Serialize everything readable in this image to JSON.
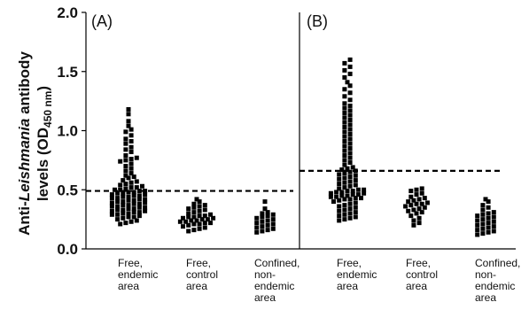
{
  "chart_data": {
    "type": "scatter",
    "ylabel": {
      "line1_prefix": "Anti-",
      "line1_italic": "Leishmania",
      "line1_suffix": " antibody",
      "line2_prefix": "levels (OD",
      "line2_sub": "450 nm",
      "line2_suffix": ")"
    },
    "ylim": [
      0,
      2.0
    ],
    "yticks": [
      "0.0",
      "0.5",
      "1.0",
      "1.5",
      "2.0"
    ],
    "grid": false,
    "panels": [
      {
        "label": "(A)",
        "cutoff": 0.49,
        "groups": [
          {
            "label_lines": [
              "Free,",
              "endemic",
              "area"
            ],
            "values": [
              1.18,
              1.14,
              1.08,
              1.04,
              1.01,
              0.99,
              0.96,
              0.93,
              0.91,
              0.89,
              0.86,
              0.84,
              0.82,
              0.79,
              0.77,
              0.76,
              0.75,
              0.74,
              0.72,
              0.7,
              0.68,
              0.66,
              0.64,
              0.62,
              0.61,
              0.6,
              0.58,
              0.57,
              0.56,
              0.55,
              0.54,
              0.53,
              0.52,
              0.52,
              0.51,
              0.5,
              0.5,
              0.49,
              0.49,
              0.48,
              0.48,
              0.47,
              0.47,
              0.46,
              0.46,
              0.45,
              0.45,
              0.44,
              0.44,
              0.43,
              0.43,
              0.42,
              0.42,
              0.41,
              0.41,
              0.4,
              0.4,
              0.39,
              0.39,
              0.38,
              0.38,
              0.37,
              0.37,
              0.36,
              0.36,
              0.35,
              0.35,
              0.34,
              0.34,
              0.33,
              0.33,
              0.32,
              0.32,
              0.31,
              0.31,
              0.3,
              0.3,
              0.29,
              0.29,
              0.28,
              0.27,
              0.27,
              0.26,
              0.25,
              0.24,
              0.23,
              0.22,
              0.21
            ]
          },
          {
            "label_lines": [
              "Free,",
              "control",
              "area"
            ],
            "values": [
              0.42,
              0.4,
              0.38,
              0.37,
              0.36,
              0.35,
              0.34,
              0.33,
              0.32,
              0.31,
              0.3,
              0.29,
              0.28,
              0.28,
              0.27,
              0.27,
              0.26,
              0.26,
              0.25,
              0.25,
              0.24,
              0.24,
              0.23,
              0.23,
              0.22,
              0.22,
              0.21,
              0.21,
              0.2,
              0.19,
              0.18,
              0.17,
              0.16,
              0.15
            ]
          },
          {
            "label_lines": [
              "Confined,",
              "non-",
              "endemic",
              "area"
            ],
            "values": [
              0.4,
              0.34,
              0.31,
              0.3,
              0.29,
              0.28,
              0.27,
              0.26,
              0.25,
              0.24,
              0.23,
              0.22,
              0.21,
              0.2,
              0.19,
              0.18,
              0.17,
              0.16,
              0.15,
              0.14
            ]
          }
        ]
      },
      {
        "label": "(B)",
        "cutoff": 0.66,
        "groups": [
          {
            "label_lines": [
              "Free,",
              "endemic",
              "area"
            ],
            "values": [
              1.6,
              1.57,
              1.54,
              1.51,
              1.48,
              1.45,
              1.41,
              1.38,
              1.35,
              1.32,
              1.29,
              1.26,
              1.23,
              1.21,
              1.19,
              1.17,
              1.15,
              1.13,
              1.11,
              1.09,
              1.07,
              1.05,
              1.03,
              1.01,
              0.99,
              0.97,
              0.95,
              0.93,
              0.91,
              0.89,
              0.87,
              0.85,
              0.83,
              0.81,
              0.79,
              0.77,
              0.75,
              0.73,
              0.71,
              0.69,
              0.68,
              0.67,
              0.66,
              0.65,
              0.64,
              0.63,
              0.62,
              0.61,
              0.6,
              0.59,
              0.58,
              0.57,
              0.56,
              0.55,
              0.54,
              0.53,
              0.52,
              0.51,
              0.5,
              0.5,
              0.49,
              0.49,
              0.48,
              0.48,
              0.47,
              0.47,
              0.46,
              0.46,
              0.45,
              0.45,
              0.44,
              0.44,
              0.43,
              0.43,
              0.42,
              0.42,
              0.41,
              0.4,
              0.39,
              0.38,
              0.37,
              0.36,
              0.35,
              0.34,
              0.33,
              0.32,
              0.31,
              0.3,
              0.29,
              0.28,
              0.27,
              0.26,
              0.25,
              0.24
            ]
          },
          {
            "label_lines": [
              "Free,",
              "control",
              "area"
            ],
            "values": [
              0.51,
              0.5,
              0.49,
              0.47,
              0.46,
              0.44,
              0.43,
              0.42,
              0.41,
              0.4,
              0.39,
              0.38,
              0.38,
              0.37,
              0.36,
              0.35,
              0.34,
              0.33,
              0.32,
              0.31,
              0.3,
              0.28,
              0.26,
              0.24,
              0.22,
              0.2
            ]
          },
          {
            "label_lines": [
              "Confined,",
              "non-",
              "endemic",
              "area"
            ],
            "values": [
              0.42,
              0.4,
              0.37,
              0.35,
              0.33,
              0.31,
              0.3,
              0.29,
              0.28,
              0.27,
              0.26,
              0.25,
              0.24,
              0.23,
              0.22,
              0.21,
              0.2,
              0.19,
              0.18,
              0.17,
              0.16,
              0.15,
              0.14,
              0.13,
              0.12
            ]
          }
        ]
      }
    ]
  },
  "colors": {
    "marker": "#000000",
    "axis": "#000000",
    "background": "#ffffff"
  }
}
